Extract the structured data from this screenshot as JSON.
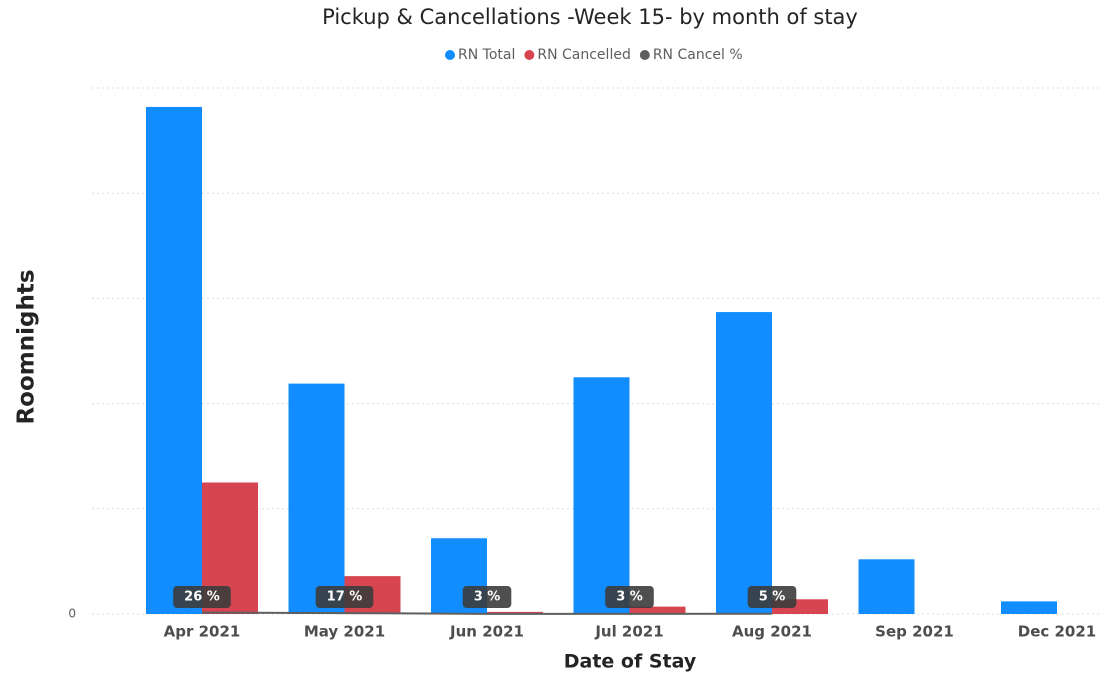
{
  "chart_data": {
    "type": "bar",
    "title": "Pickup & Cancellations -Week 15- by month of stay",
    "x_label": "Date of Stay",
    "y_label": "Roomnights",
    "categories": [
      "Apr 2021",
      "May 2021",
      "Jun 2021",
      "Jul 2021",
      "Aug 2021",
      "Sep 2021",
      "Dec 2021"
    ],
    "series": [
      {
        "name": "RN Total",
        "color": "#118dff",
        "values": [
          482,
          219,
          72,
          225,
          287,
          52,
          12
        ]
      },
      {
        "name": "RN Cancelled",
        "color": "#d64550",
        "values": [
          125,
          36,
          2,
          7,
          14,
          null,
          null
        ]
      },
      {
        "name": "RN Cancel %",
        "color": "#5f5f5f",
        "type": "line",
        "axis": "y2",
        "values": [
          26,
          17,
          3,
          3,
          5,
          null,
          null
        ],
        "value_labels": [
          "26 %",
          "17 %",
          "3 %",
          "3 %",
          "5 %",
          null,
          null
        ]
      }
    ],
    "ylim": [
      0,
      500
    ],
    "yticks": [
      0
    ],
    "gridlines": [
      100,
      200,
      300,
      400,
      500
    ],
    "y2lim": [
      0,
      10000
    ],
    "grid": true,
    "legend": "top"
  }
}
